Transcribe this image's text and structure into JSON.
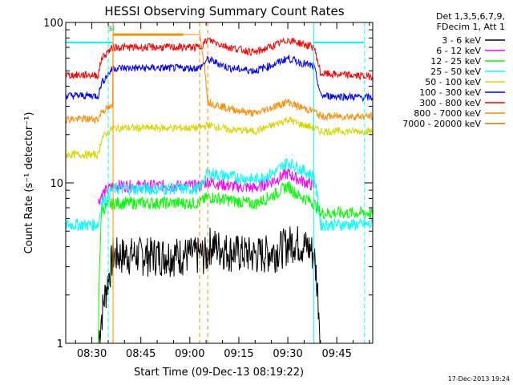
{
  "chart_data": {
    "type": "line",
    "title": "HESSI Observing Summary Count Rates",
    "xlabel": "Start Time (09-Dec-13 08:19:22)",
    "ylabel": "Count Rate (s⁻¹ detector⁻¹)",
    "yscale": "log",
    "ylim": [
      1,
      100
    ],
    "xlim_min": [
      502,
      596
    ],
    "x_unit": "minutes after 00:00 UT, 09-Dec-13",
    "xticks": [
      {
        "at": 510,
        "label": "08:30"
      },
      {
        "at": 525,
        "label": "08:45"
      },
      {
        "at": 540,
        "label": "09:00"
      },
      {
        "at": 555,
        "label": "09:15"
      },
      {
        "at": 570,
        "label": "09:30"
      },
      {
        "at": 585,
        "label": "09:45"
      }
    ],
    "yticks": [
      {
        "at": 1,
        "label": "1"
      },
      {
        "at": 10,
        "label": "10"
      },
      {
        "at": 100,
        "label": "100"
      }
    ],
    "legend_header": [
      "Det 1,3,5,6,7,9,",
      "FDecim 1, Att 1"
    ],
    "legend_position": "outside-right",
    "series": [
      {
        "name": "3 - 6 keV",
        "color": "#000000",
        "x": [
          502,
          512,
          515,
          516.5,
          538,
          543,
          545.5,
          546,
          552,
          560,
          566,
          572,
          577,
          578,
          580,
          584,
          596
        ],
        "y": [
          1,
          1,
          2.5,
          3.6,
          3.6,
          3.6,
          3.6,
          4.2,
          3.8,
          3.6,
          3.8,
          4.4,
          3.9,
          3.6,
          1,
          1,
          1
        ]
      },
      {
        "name": "6 - 12 keV",
        "color": "#ff00ff",
        "x": [
          512,
          513,
          516.5,
          538,
          543,
          545.5,
          552,
          560,
          566,
          570,
          573,
          578
        ],
        "y": [
          7.5,
          8.5,
          9.6,
          9.6,
          9.6,
          10.2,
          9.6,
          9.3,
          10.4,
          11.5,
          10.6,
          9.6
        ]
      },
      {
        "name": "12 - 25 keV",
        "color": "#00ff00",
        "x": [
          502,
          512,
          513,
          516.5,
          538,
          543,
          545.5,
          552,
          560,
          566,
          570,
          573,
          578,
          580,
          596
        ],
        "y": [
          1,
          1,
          6.8,
          7.5,
          7.5,
          7.5,
          8.2,
          7.8,
          7.4,
          8.5,
          9.6,
          8.4,
          7.5,
          6.5,
          6.5
        ]
      },
      {
        "name": "25 - 50 keV",
        "color": "#00ffff",
        "x": [
          502,
          512,
          513,
          516.5,
          538,
          543,
          545.5,
          552,
          560,
          566,
          570,
          573,
          578,
          580,
          596
        ],
        "y": [
          5.5,
          5.5,
          7.5,
          9.2,
          9.2,
          9.2,
          11.5,
          11,
          10.5,
          11.6,
          13.5,
          12.5,
          11,
          5.5,
          5.5
        ]
      },
      {
        "name": "50 - 100 keV",
        "color": "#d7d700",
        "x": [
          502,
          512,
          513,
          516.5,
          538,
          543,
          545.5,
          552,
          560,
          566,
          570,
          573,
          578,
          580,
          596
        ],
        "y": [
          15,
          15,
          19,
          22,
          22,
          22,
          23,
          21.5,
          21,
          23,
          25,
          23.5,
          22,
          21,
          21
        ]
      },
      {
        "name": "100 - 300 keV",
        "color": "#0000ff",
        "x": [
          502,
          512,
          513,
          516.5,
          538,
          543,
          545.5,
          552,
          560,
          566,
          570,
          573,
          578,
          580,
          596
        ],
        "y": [
          35,
          35,
          42,
          52,
          52,
          52,
          59,
          52,
          50,
          55,
          60,
          57,
          53,
          35,
          34
        ]
      },
      {
        "name": "300 - 800 keV",
        "color": "#ff0000",
        "x": [
          502,
          512,
          513,
          516.5,
          538,
          543,
          545.5,
          552,
          560,
          566,
          570,
          573,
          578,
          580,
          596
        ],
        "y": [
          47,
          47,
          60,
          70,
          70,
          70,
          78,
          70,
          65,
          72,
          78,
          75,
          70,
          48,
          46
        ]
      },
      {
        "name": "800 - 7000 keV",
        "color": "#ff8c00",
        "x": [
          502,
          512,
          513,
          516.5,
          516.5,
          538,
          538,
          543,
          545.5,
          552,
          560,
          566,
          570,
          573,
          578,
          580,
          596
        ],
        "y": [
          25,
          25,
          28,
          30,
          84,
          84,
          84,
          84,
          32,
          29,
          27,
          30,
          32,
          30,
          28,
          26,
          26
        ]
      },
      {
        "name": "7000 - 20000 keV",
        "color": "#c07800",
        "x": [],
        "y": []
      }
    ],
    "vertical_markers": [
      {
        "x": 516.5,
        "color": "#ff8c00",
        "style": "solid",
        "top_label": "S"
      },
      {
        "x": 515,
        "color": "#00ffff",
        "style": "dashed",
        "top_label": "N"
      },
      {
        "x": 543,
        "color": "#ff8c00",
        "style": "dashed"
      },
      {
        "x": 545.5,
        "color": "#ff8c00",
        "style": "dashed"
      },
      {
        "x": 578,
        "color": "#00ffff",
        "style": "solid"
      },
      {
        "x": 593.5,
        "color": "#00ffff",
        "style": "dashed"
      }
    ],
    "attenuator_band": {
      "from": 516.5,
      "to": 538,
      "y": 84,
      "color": "#ff8c00"
    },
    "saa_band_cyan": [
      {
        "from": 502,
        "to": 516.5,
        "y": 75
      },
      {
        "from": 578,
        "to": 593.5,
        "y": 75
      }
    ]
  },
  "footer": {
    "timestamp": "17-Dec-2013 19:24"
  }
}
